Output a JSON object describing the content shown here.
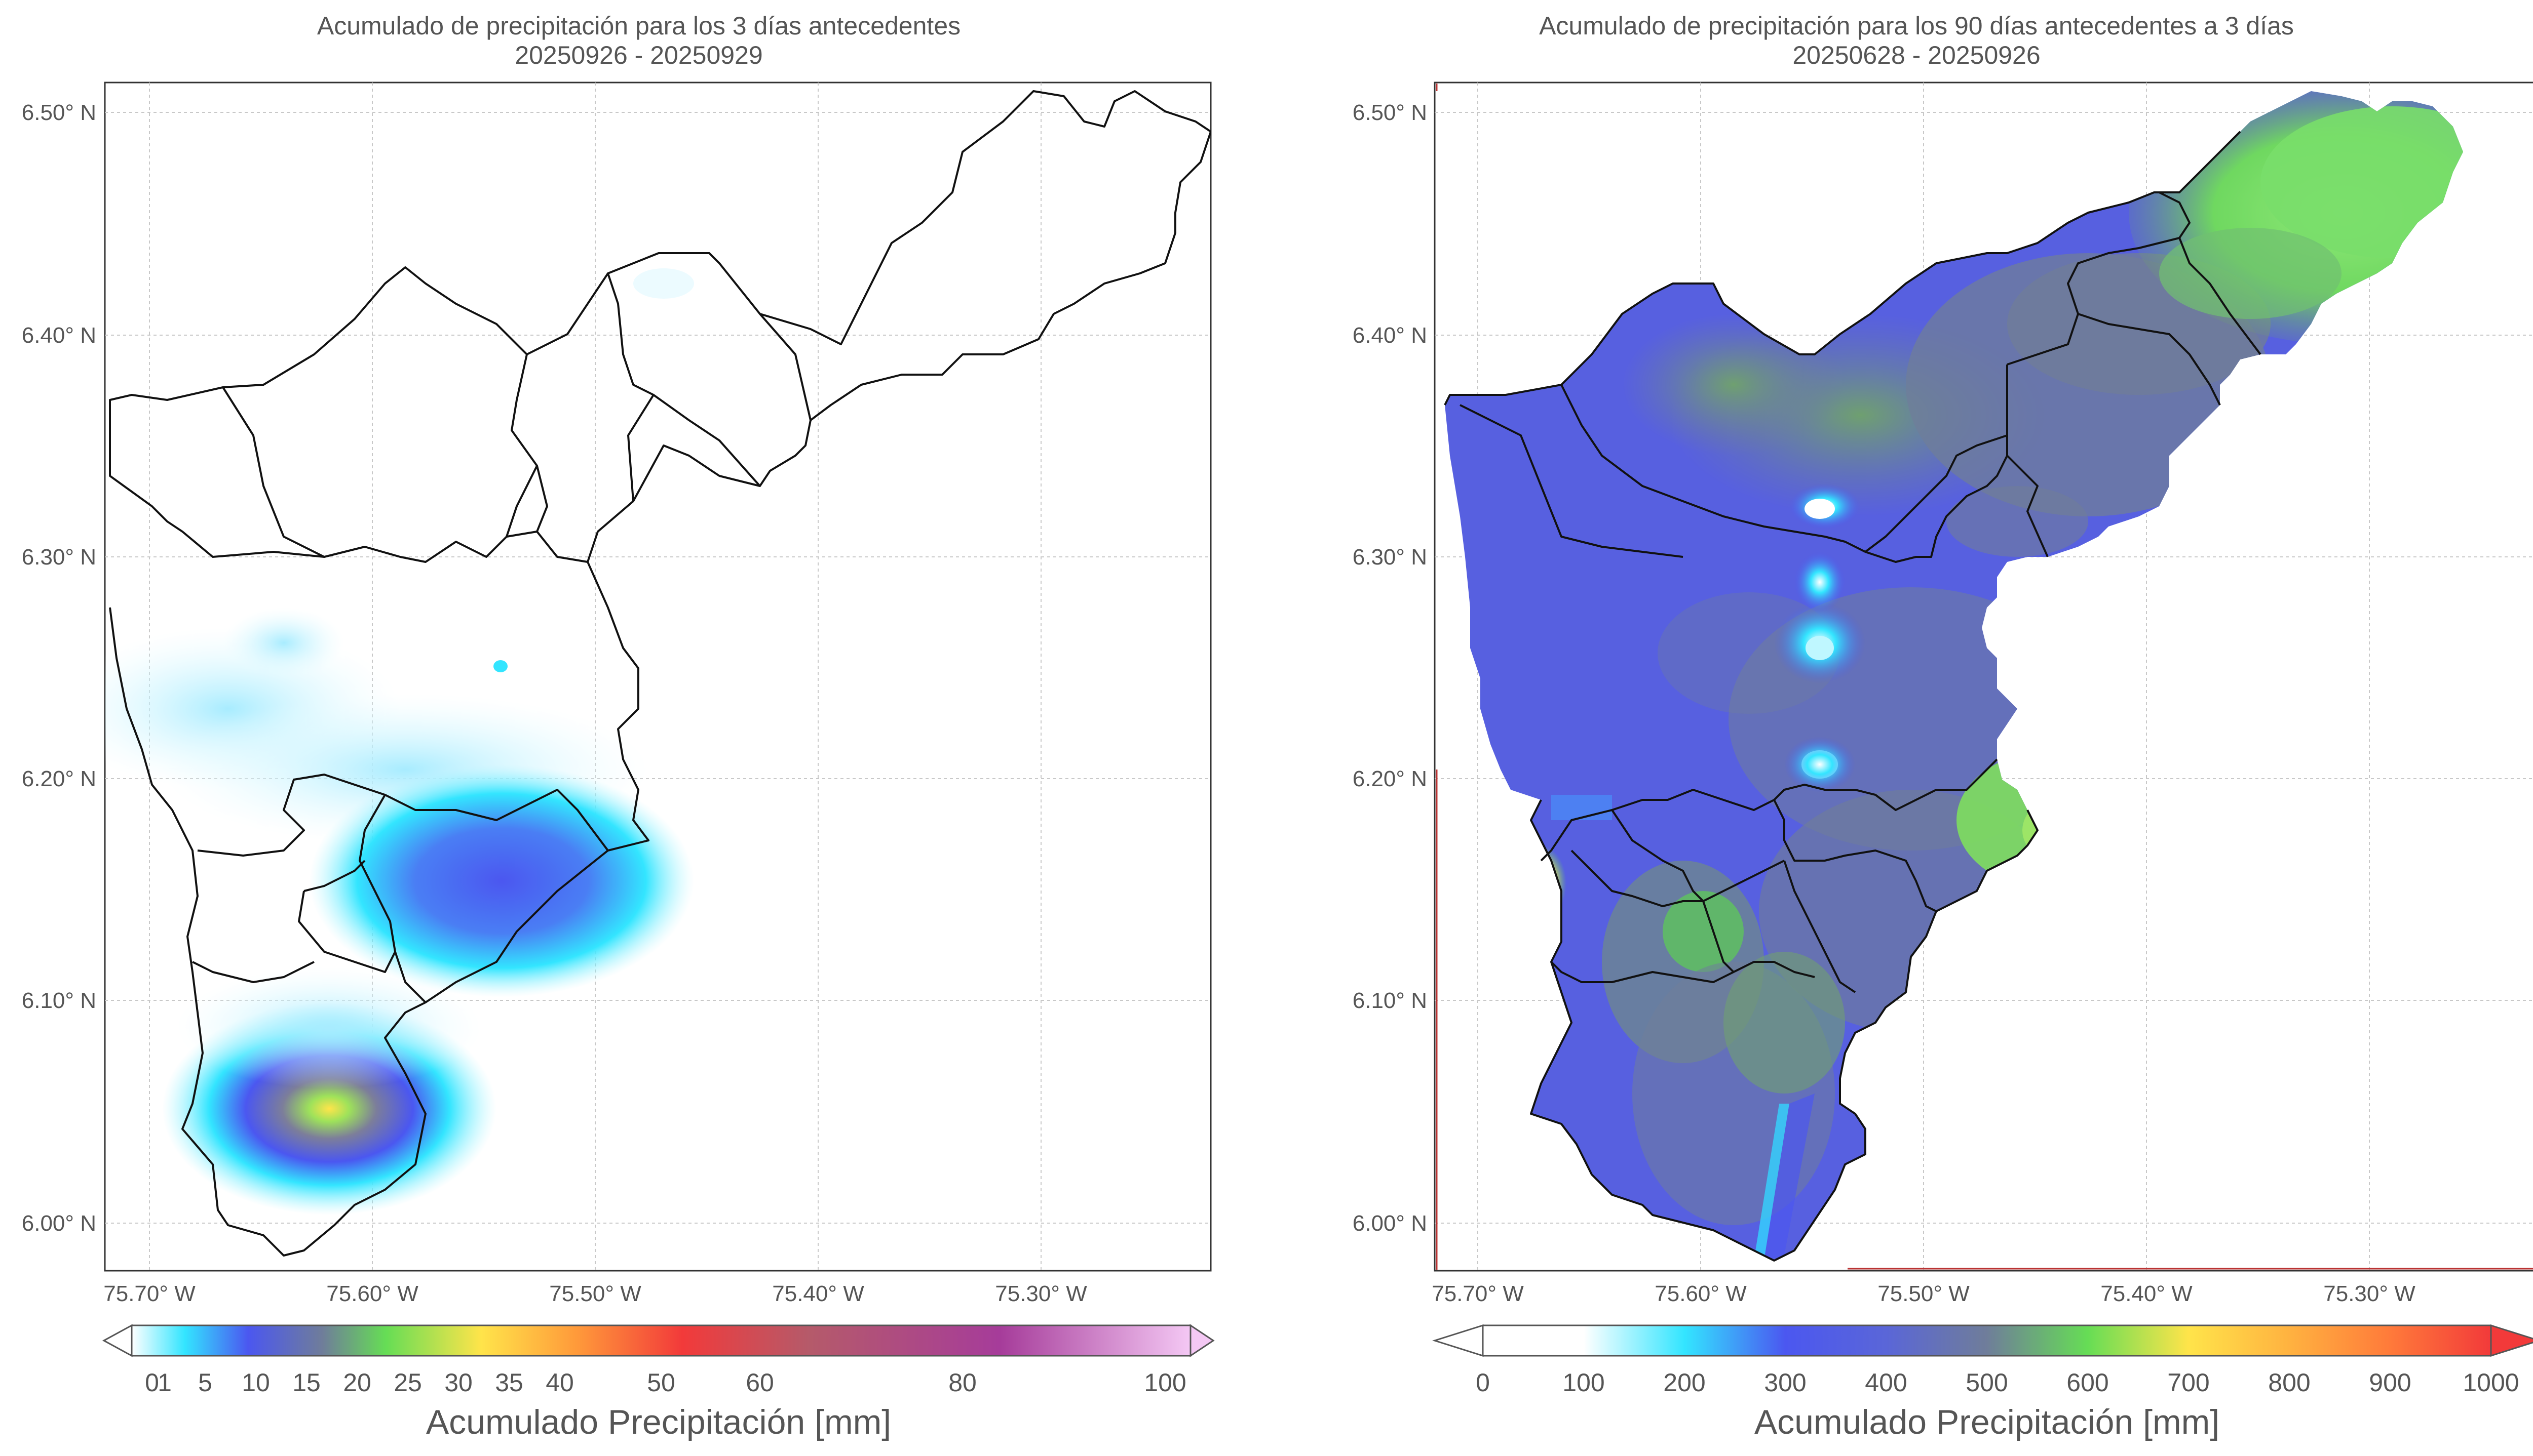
{
  "panels": [
    {
      "title_line1": "Acumulado de precipitación para los 3 días antecedentes",
      "title_line2": "20250926 - 20250929",
      "lat_ticks": [
        "6.50° N",
        "6.40° N",
        "6.30° N",
        "6.20° N",
        "6.10° N",
        "6.00° N"
      ],
      "lon_ticks": [
        "75.70° W",
        "75.60° W",
        "75.50° W",
        "75.40° W",
        "75.30° W"
      ],
      "colorbar": {
        "label": "Acumulado Precipitación [mm]",
        "ticks": [
          "0",
          "1",
          "5",
          "10",
          "15",
          "20",
          "25",
          "30",
          "35",
          "40",
          "50",
          "60",
          "80",
          "100"
        ],
        "extend": "both"
      }
    },
    {
      "title_line1": "Acumulado de precipitación para los 90 días antecedentes a 3 días",
      "title_line2": "20250628 - 20250926",
      "lat_ticks": [
        "6.50° N",
        "6.40° N",
        "6.30° N",
        "6.20° N",
        "6.10° N",
        "6.00° N"
      ],
      "lon_ticks": [
        "75.70° W",
        "75.60° W",
        "75.50° W",
        "75.40° W",
        "75.30° W"
      ],
      "colorbar": {
        "label": "Acumulado Precipitación [mm]",
        "ticks": [
          "0",
          "100",
          "200",
          "300",
          "400",
          "500",
          "600",
          "700",
          "800",
          "900",
          "1000"
        ],
        "extend": "max"
      }
    }
  ],
  "colors": {
    "cyan": "#33e5ff",
    "blue": "#4b57f0",
    "slate": "#6f7d9a",
    "green": "#66dd55",
    "yellow": "#ffe44a",
    "orange": "#ff9a3a",
    "red": "#f23a3a",
    "purple": "#a63c9a",
    "pink": "#f4c8f4"
  }
}
